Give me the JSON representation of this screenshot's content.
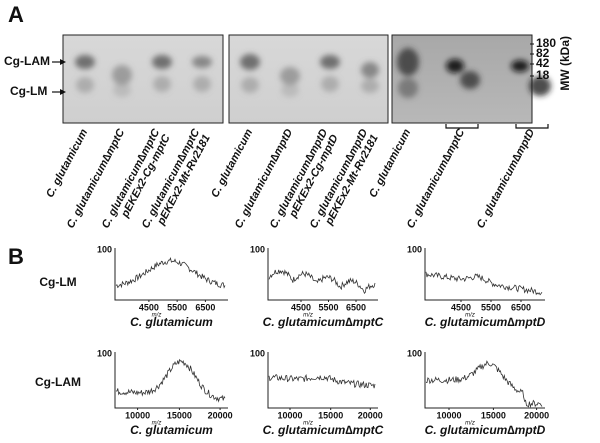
{
  "panel_a": {
    "label": "A",
    "band_labels": [
      "Cg-LAM",
      "Cg-LM"
    ],
    "mw_title": "MW (kDa)",
    "mw_markers": [
      "180",
      "82",
      "42",
      "18"
    ],
    "lanes": [
      [
        "C. glutamicum"
      ],
      [
        "C. glutamicum∆mptC"
      ],
      [
        "C. glutamicum∆mptC",
        "pEKEx2-Cg-mptC"
      ],
      [
        "C. glutamicum∆mptC",
        "pEKEx2-Mt-Rv2181"
      ],
      [
        "C. glutamicum"
      ],
      [
        "C. glutamicum∆mptD"
      ],
      [
        "C. glutamicum∆mptD",
        "pEKEx2-Cg-mptD"
      ],
      [
        "C. glutamicum∆mptD",
        "pEKEx2-Mt-Rv2181"
      ],
      [
        "C. glutamicum"
      ],
      [
        "C. glutamicum∆mptC"
      ],
      [
        "C. glutamicum∆mptD"
      ]
    ]
  },
  "panel_b": {
    "label": "B",
    "rows": [
      {
        "label": "Cg-LM",
        "plots": [
          {
            "yticks": [
              "100"
            ],
            "xticks": [
              "4500",
              "5500",
              "6500"
            ],
            "xlabel": "m/z",
            "caption": "C. glutamicum"
          },
          {
            "yticks": [
              "100"
            ],
            "xticks": [
              "4500",
              "5500",
              "6500"
            ],
            "xlabel": "m/z",
            "caption": "C. glutamicum∆mptC"
          },
          {
            "yticks": [
              "100"
            ],
            "xticks": [
              "4500",
              "5500",
              "6500"
            ],
            "xlabel": "m/z",
            "caption": "C. glutamicum∆mptD"
          }
        ]
      },
      {
        "label": "Cg-LAM",
        "plots": [
          {
            "yticks": [
              "100"
            ],
            "xticks": [
              "10000",
              "15000",
              "20000"
            ],
            "xlabel": "m/z",
            "caption": "C. glutamicum"
          },
          {
            "yticks": [
              "100"
            ],
            "xticks": [
              "10000",
              "15000",
              "20000"
            ],
            "xlabel": "m/z",
            "caption": "C. glutamicum∆mptC"
          },
          {
            "yticks": [
              "100"
            ],
            "xticks": [
              "10000",
              "15000",
              "20000"
            ],
            "xlabel": "m/z",
            "caption": "C. glutamicum∆mptD"
          }
        ]
      }
    ]
  }
}
